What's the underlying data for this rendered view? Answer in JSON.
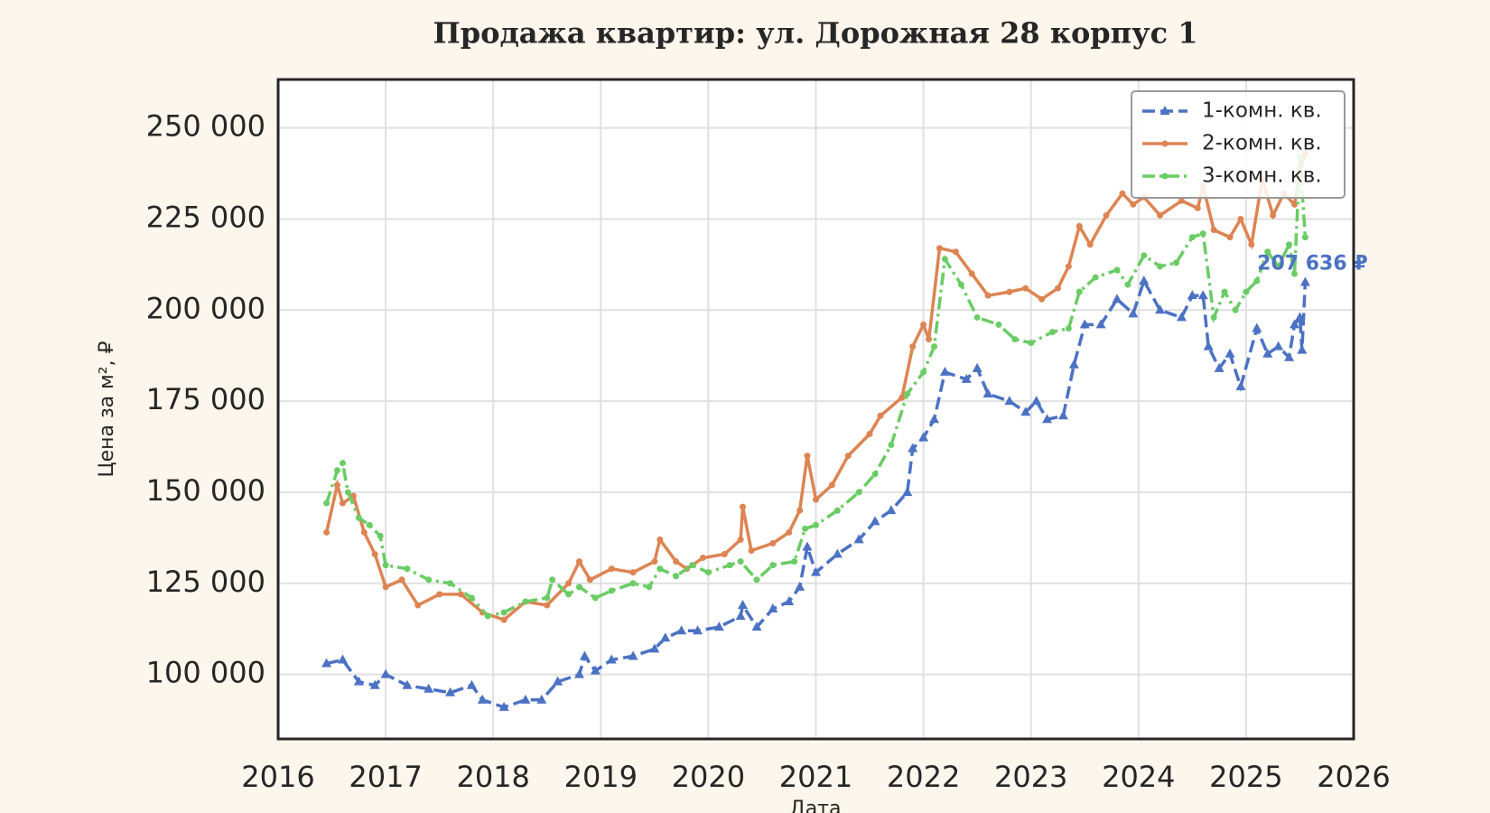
{
  "chart_data": {
    "type": "line",
    "title": "Продажа квартир: ул. Дорожная 28 корпус 1",
    "xlabel": "Дата",
    "ylabel": "Цена за м², ₽",
    "xlim": [
      2016,
      2026
    ],
    "xticks": [
      2016,
      2017,
      2018,
      2019,
      2020,
      2021,
      2022,
      2023,
      2024,
      2025,
      2026
    ],
    "ylim": [
      82300,
      263300
    ],
    "yticks": [
      {
        "value": 100000,
        "label": "100 000"
      },
      {
        "value": 125000,
        "label": "125 000"
      },
      {
        "value": 150000,
        "label": "150 000"
      },
      {
        "value": 175000,
        "label": "175 000"
      },
      {
        "value": 200000,
        "label": "200 000"
      },
      {
        "value": 225000,
        "label": "225 000"
      },
      {
        "value": 250000,
        "label": "250 000"
      }
    ],
    "grid": true,
    "legend": "upper right",
    "annotation": "207 636 ₽",
    "series": [
      {
        "name": "1-комн. кв.",
        "color": "#4c72c4",
        "line": "dashed",
        "marker": "triangle",
        "x": [
          2016.45,
          2016.6,
          2016.75,
          2016.9,
          2017.0,
          2017.2,
          2017.4,
          2017.6,
          2017.8,
          2017.9,
          2018.1,
          2018.3,
          2018.45,
          2018.6,
          2018.8,
          2018.85,
          2018.95,
          2019.1,
          2019.3,
          2019.5,
          2019.6,
          2019.75,
          2019.9,
          2020.1,
          2020.3,
          2020.32,
          2020.45,
          2020.6,
          2020.75,
          2020.85,
          2020.92,
          2021.0,
          2021.2,
          2021.4,
          2021.55,
          2021.7,
          2021.85,
          2021.9,
          2022.0,
          2022.1,
          2022.2,
          2022.4,
          2022.5,
          2022.6,
          2022.8,
          2022.95,
          2023.05,
          2023.15,
          2023.3,
          2023.4,
          2023.5,
          2023.65,
          2023.8,
          2023.95,
          2024.05,
          2024.2,
          2024.4,
          2024.5,
          2024.6,
          2024.65,
          2024.75,
          2024.85,
          2024.95,
          2025.1,
          2025.2,
          2025.3,
          2025.4,
          2025.45,
          2025.5,
          2025.52,
          2025.55
        ],
        "values": [
          103000,
          104000,
          98000,
          97000,
          100000,
          97000,
          96000,
          95000,
          97000,
          93000,
          91000,
          93000,
          93000,
          98000,
          100000,
          105000,
          101000,
          104000,
          105000,
          107000,
          110000,
          112000,
          112000,
          113000,
          116000,
          119000,
          113000,
          118000,
          120000,
          124000,
          135000,
          128000,
          133000,
          137000,
          142000,
          145000,
          150000,
          162000,
          165000,
          170000,
          183000,
          181000,
          184000,
          177000,
          175000,
          172000,
          175000,
          170000,
          171000,
          185000,
          196000,
          196000,
          203000,
          199000,
          208000,
          200000,
          198000,
          204000,
          204000,
          190000,
          184000,
          188000,
          179000,
          195000,
          188000,
          190000,
          187000,
          196000,
          198000,
          189000,
          207636
        ]
      },
      {
        "name": "2-комн. кв.",
        "color": "#dd8452",
        "line": "solid",
        "marker": "dot",
        "x": [
          2016.45,
          2016.55,
          2016.6,
          2016.7,
          2016.8,
          2016.9,
          2017.0,
          2017.15,
          2017.3,
          2017.5,
          2017.7,
          2017.9,
          2018.1,
          2018.3,
          2018.5,
          2018.7,
          2018.8,
          2018.9,
          2019.1,
          2019.3,
          2019.5,
          2019.55,
          2019.7,
          2019.8,
          2019.95,
          2020.15,
          2020.3,
          2020.32,
          2020.4,
          2020.6,
          2020.75,
          2020.85,
          2020.92,
          2021.0,
          2021.15,
          2021.3,
          2021.5,
          2021.6,
          2021.8,
          2021.9,
          2022.0,
          2022.05,
          2022.15,
          2022.3,
          2022.45,
          2022.6,
          2022.8,
          2022.95,
          2023.1,
          2023.25,
          2023.35,
          2023.45,
          2023.55,
          2023.7,
          2023.85,
          2023.95,
          2024.05,
          2024.2,
          2024.4,
          2024.55,
          2024.6,
          2024.7,
          2024.85,
          2024.95,
          2025.05,
          2025.15,
          2025.25,
          2025.35,
          2025.45,
          2025.5,
          2025.55
        ],
        "values": [
          139000,
          152000,
          147000,
          149000,
          139000,
          133000,
          124000,
          126000,
          119000,
          122000,
          122000,
          117000,
          115000,
          120000,
          119000,
          125000,
          131000,
          126000,
          129000,
          128000,
          131000,
          137000,
          131000,
          129000,
          132000,
          133000,
          137000,
          146000,
          134000,
          136000,
          139000,
          145000,
          160000,
          148000,
          152000,
          160000,
          166000,
          171000,
          176000,
          190000,
          196000,
          192000,
          217000,
          216000,
          210000,
          204000,
          205000,
          206000,
          203000,
          206000,
          212000,
          223000,
          218000,
          226000,
          232000,
          229000,
          231000,
          226000,
          230000,
          228000,
          234000,
          222000,
          220000,
          225000,
          218000,
          236000,
          226000,
          232000,
          229000,
          238000,
          243000
        ]
      },
      {
        "name": "3-комн. кв.",
        "color": "#6acc64",
        "line": "dashdot",
        "marker": "dot",
        "x": [
          2016.45,
          2016.55,
          2016.6,
          2016.65,
          2016.75,
          2016.85,
          2016.95,
          2017.0,
          2017.2,
          2017.4,
          2017.6,
          2017.8,
          2017.95,
          2018.1,
          2018.3,
          2018.5,
          2018.55,
          2018.7,
          2018.8,
          2018.95,
          2019.1,
          2019.3,
          2019.45,
          2019.55,
          2019.7,
          2019.85,
          2020.0,
          2020.2,
          2020.3,
          2020.45,
          2020.6,
          2020.8,
          2020.9,
          2021.0,
          2021.2,
          2021.4,
          2021.55,
          2021.7,
          2021.85,
          2022.0,
          2022.1,
          2022.2,
          2022.35,
          2022.5,
          2022.7,
          2022.85,
          2023.0,
          2023.2,
          2023.35,
          2023.45,
          2023.6,
          2023.8,
          2023.9,
          2024.05,
          2024.2,
          2024.35,
          2024.5,
          2024.6,
          2024.7,
          2024.8,
          2024.9,
          2025.0,
          2025.1,
          2025.2,
          2025.3,
          2025.4,
          2025.45,
          2025.5,
          2025.55
        ],
        "values": [
          147000,
          156000,
          158000,
          150000,
          143000,
          141000,
          138000,
          130000,
          129000,
          126000,
          125000,
          121000,
          116000,
          117000,
          120000,
          121000,
          126000,
          122000,
          124000,
          121000,
          123000,
          125000,
          124000,
          129000,
          127000,
          130000,
          128000,
          130000,
          131000,
          126000,
          130000,
          131000,
          140000,
          141000,
          145000,
          150000,
          155000,
          163000,
          177000,
          183000,
          190000,
          214000,
          207000,
          198000,
          196000,
          192000,
          191000,
          194000,
          195000,
          205000,
          209000,
          211000,
          207000,
          215000,
          212000,
          213000,
          220000,
          221000,
          198000,
          205000,
          200000,
          205000,
          208000,
          216000,
          212000,
          218000,
          210000,
          242000,
          220000
        ]
      }
    ]
  }
}
